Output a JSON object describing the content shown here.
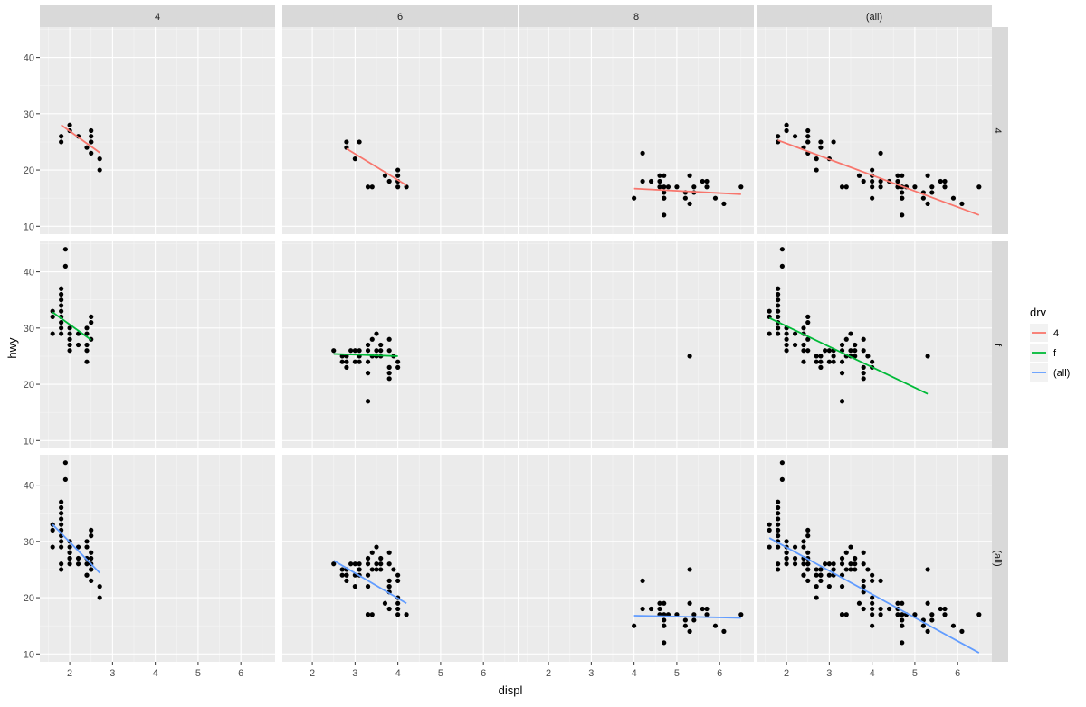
{
  "chart_data": {
    "type": "scatter",
    "facet": {
      "cols": [
        "4",
        "6",
        "8",
        "(all)"
      ],
      "rows": [
        "4",
        "f",
        "(all)"
      ]
    },
    "xlabel": "displ",
    "ylabel": "hwy",
    "xlim": [
      1.3,
      6.8
    ],
    "ylim": [
      8.6,
      45.4
    ],
    "x_ticks": [
      2,
      3,
      4,
      5,
      6
    ],
    "y_ticks": [
      10,
      20,
      30,
      40
    ],
    "grid": true,
    "legend": {
      "title": "drv",
      "position": "right",
      "entries": [
        {
          "label": "4",
          "color": "#F8766D"
        },
        {
          "label": "f",
          "color": "#00BA38"
        },
        {
          "label": "(all)",
          "color": "#619CFF"
        }
      ]
    },
    "base_points": {
      "4_4": [
        [
          1.8,
          25
        ],
        [
          1.8,
          26
        ],
        [
          2.0,
          27
        ],
        [
          2.0,
          28
        ],
        [
          2.2,
          26
        ],
        [
          2.4,
          24
        ],
        [
          2.5,
          25
        ],
        [
          2.5,
          26
        ],
        [
          2.5,
          27
        ],
        [
          2.5,
          23
        ],
        [
          2.5,
          25
        ],
        [
          2.7,
          22
        ],
        [
          2.7,
          20
        ]
      ],
      "4_6": [
        [
          2.8,
          25
        ],
        [
          2.8,
          24
        ],
        [
          3.0,
          22
        ],
        [
          3.1,
          25
        ],
        [
          3.3,
          17
        ],
        [
          3.4,
          17
        ],
        [
          3.7,
          19
        ],
        [
          3.8,
          18
        ],
        [
          4.0,
          17
        ],
        [
          4.0,
          19
        ],
        [
          4.0,
          20
        ],
        [
          4.0,
          18
        ],
        [
          4.2,
          17
        ]
      ],
      "4_8": [
        [
          4.0,
          15
        ],
        [
          4.2,
          23
        ],
        [
          4.2,
          18
        ],
        [
          4.4,
          18
        ],
        [
          4.6,
          17
        ],
        [
          4.6,
          18
        ],
        [
          4.6,
          19
        ],
        [
          4.7,
          12
        ],
        [
          4.7,
          15
        ],
        [
          4.7,
          16
        ],
        [
          4.7,
          17
        ],
        [
          4.7,
          19
        ],
        [
          4.7,
          15
        ],
        [
          4.8,
          17
        ],
        [
          5.0,
          17
        ],
        [
          5.2,
          15
        ],
        [
          5.2,
          16
        ],
        [
          5.3,
          19
        ],
        [
          5.3,
          14
        ],
        [
          5.4,
          16
        ],
        [
          5.4,
          17
        ],
        [
          5.6,
          18
        ],
        [
          5.7,
          17
        ],
        [
          5.7,
          18
        ],
        [
          5.9,
          15
        ],
        [
          6.1,
          14
        ],
        [
          6.5,
          17
        ]
      ],
      "f_4": [
        [
          1.6,
          32
        ],
        [
          1.6,
          33
        ],
        [
          1.6,
          29
        ],
        [
          1.8,
          29
        ],
        [
          1.8,
          30
        ],
        [
          1.8,
          31
        ],
        [
          1.8,
          32
        ],
        [
          1.8,
          33
        ],
        [
          1.8,
          34
        ],
        [
          1.8,
          35
        ],
        [
          1.8,
          36
        ],
        [
          1.8,
          37
        ],
        [
          1.9,
          41
        ],
        [
          1.9,
          44
        ],
        [
          2.0,
          26
        ],
        [
          2.0,
          28
        ],
        [
          2.0,
          29
        ],
        [
          2.0,
          30
        ],
        [
          2.0,
          27
        ],
        [
          2.2,
          29
        ],
        [
          2.2,
          27
        ],
        [
          2.4,
          24
        ],
        [
          2.4,
          26
        ],
        [
          2.4,
          27
        ],
        [
          2.4,
          29
        ],
        [
          2.4,
          30
        ],
        [
          2.5,
          28
        ],
        [
          2.5,
          31
        ],
        [
          2.5,
          32
        ]
      ],
      "f_6": [
        [
          2.5,
          26
        ],
        [
          2.7,
          25
        ],
        [
          2.7,
          24
        ],
        [
          2.8,
          25
        ],
        [
          2.8,
          24
        ],
        [
          2.8,
          23
        ],
        [
          2.9,
          26
        ],
        [
          3.0,
          26
        ],
        [
          3.0,
          24
        ],
        [
          3.1,
          26
        ],
        [
          3.1,
          25
        ],
        [
          3.1,
          24
        ],
        [
          3.3,
          17
        ],
        [
          3.3,
          22
        ],
        [
          3.3,
          24
        ],
        [
          3.3,
          26
        ],
        [
          3.3,
          27
        ],
        [
          3.4,
          28
        ],
        [
          3.4,
          25
        ],
        [
          3.5,
          26
        ],
        [
          3.5,
          25
        ],
        [
          3.5,
          29
        ],
        [
          3.6,
          27
        ],
        [
          3.6,
          26
        ],
        [
          3.6,
          25
        ],
        [
          3.8,
          21
        ],
        [
          3.8,
          22
        ],
        [
          3.8,
          23
        ],
        [
          3.8,
          26
        ],
        [
          3.8,
          28
        ],
        [
          3.9,
          25
        ],
        [
          4.0,
          24
        ],
        [
          4.0,
          23
        ]
      ],
      "f_8": [
        [
          5.3,
          25
        ]
      ]
    },
    "fits": {
      "4_4": {
        "x": [
          1.8,
          2.7
        ],
        "y": [
          28.0,
          23.1
        ]
      },
      "4_6": {
        "x": [
          2.8,
          4.2
        ],
        "y": [
          23.8,
          17.3
        ]
      },
      "4_8": {
        "x": [
          4.0,
          6.5
        ],
        "y": [
          16.7,
          15.7
        ]
      },
      "4_all": {
        "x": [
          1.8,
          6.5
        ],
        "y": [
          25.3,
          12.0
        ]
      },
      "f_4": {
        "x": [
          1.6,
          2.5
        ],
        "y": [
          32.8,
          27.9
        ]
      },
      "f_6": {
        "x": [
          2.5,
          4.0
        ],
        "y": [
          25.4,
          25.0
        ]
      },
      "f_all": {
        "x": [
          1.6,
          5.3
        ],
        "y": [
          31.8,
          18.3
        ]
      },
      "all_4": {
        "x": [
          1.6,
          2.7
        ],
        "y": [
          33.0,
          24.4
        ]
      },
      "all_6": {
        "x": [
          2.5,
          4.2
        ],
        "y": [
          26.6,
          19.0
        ]
      },
      "all_8": {
        "x": [
          4.0,
          6.5
        ],
        "y": [
          16.8,
          16.4
        ]
      },
      "all_all": {
        "x": [
          1.6,
          6.5
        ],
        "y": [
          30.6,
          10.2
        ]
      }
    }
  }
}
